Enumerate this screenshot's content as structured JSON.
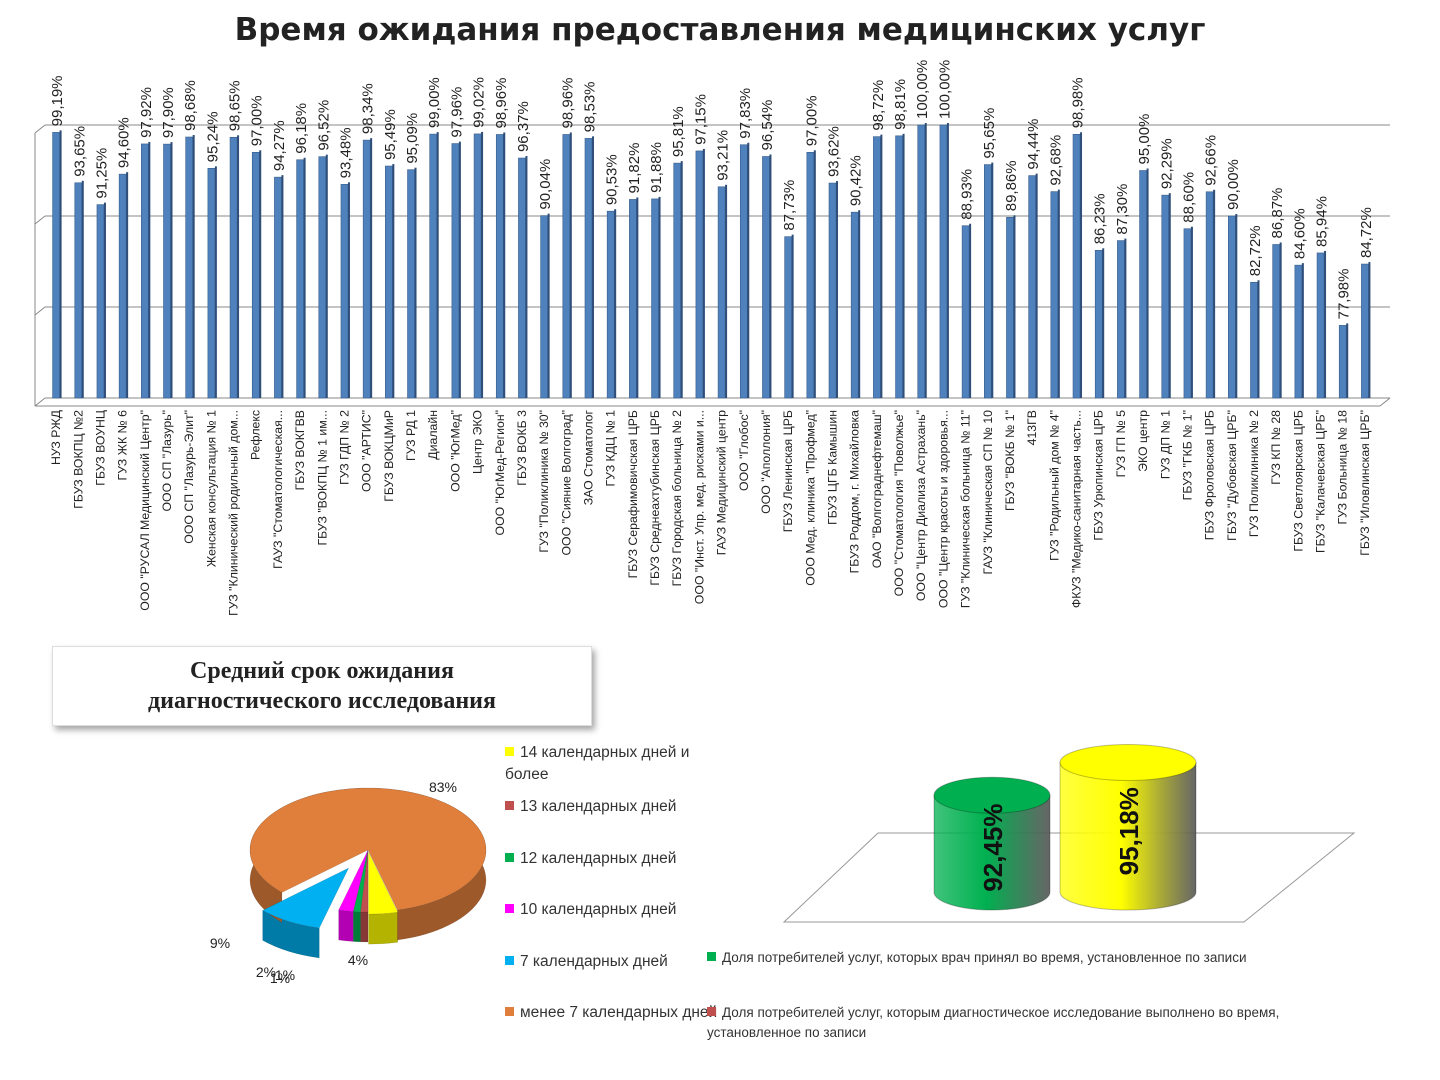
{
  "title": "Время ожидания предоставления медицинских услуг",
  "chart_data": [
    {
      "type": "bar",
      "title": "Время ожидания предоставления медицинских услуг",
      "bar_color": "#4f81bd",
      "grid": true,
      "categories": [
        "НУЗ РЖД",
        "ГБУЗ ВОКПЦ №2",
        "ГБУЗ ВОУНЦ",
        "ГУЗ ЖК № 6",
        "ООО \"РУСАЛ Медицинский Центр\"",
        "ООО СП \"Лазурь\"",
        "ООО СП \"Лазурь-Элит\"",
        "Женская консультация № 1",
        "ГУЗ \"Клинический родильный дом...",
        "Рефлекс",
        "ГАУЗ \"Стоматологическая...",
        "ГБУЗ ВОКГВВ",
        "ГБУЗ \"ВОКПЦ № 1 им...",
        "ГУЗ ГДП № 2",
        "ООО \"АРТИС\"",
        "ГБУЗ ВОКЦМиР",
        "ГУЗ РД 1",
        "Диалайн",
        "ООО \"ЮгМед\"",
        "Центр ЭКО",
        "ООО \"ЮгМед-Регион\"",
        "ГБУЗ ВОКБ 3",
        "ГУЗ \"Поликлиника № 30\"",
        "ООО \"Сияние Волгоград\"",
        "ЗАО Стоматолог",
        "ГУЗ КДЦ № 1",
        "ГБУЗ Серафимовичская ЦРБ",
        "ГБУЗ Среднеахтубинская ЦРБ",
        "ГБУЗ Городская больница № 2",
        "ООО \"Инст. Упр. мед. рисками и...",
        "ГАУЗ Медицинский центр",
        "ООО \"Глобос\"",
        "ООО \"Аполлония\"",
        "ГБУЗ Ленинская ЦРБ",
        "ООО Мед. клиника \"Профмед\"",
        "ГБУЗ ЦГБ Камышин",
        "ГБУЗ Роддом, г. Михайловка",
        "ОАО \"Волгограднефтемаш\"",
        "ООО \"Стоматология \"Поволжье\"",
        "ООО \"Центр Диализа Астрахань\"",
        "ООО \"Центр красоты и здоровья...",
        "ГУЗ \"Клиническая больница № 11\"",
        "ГАУЗ \"Клиническая СП № 10",
        "ГБУЗ \"ВОКБ № 1\"",
        "413ГВ",
        "ГУЗ \"Родильный дом № 4\"",
        "ФКУЗ \"Медико-санитарная часть...",
        "ГБУЗ Урюпинская ЦРБ",
        "ГУЗ ГП № 5",
        "ЭКО центр",
        "ГУЗ ДП № 1",
        "ГБУЗ \"ГКБ № 1\"",
        "ГБУЗ Фроловская ЦРБ",
        "ГБУЗ \"Дубовская ЦРБ\"",
        "ГУЗ Поликлиника № 2",
        "ГУЗ КП № 28",
        "ГБУЗ Светлоярская ЦРБ",
        "ГБУЗ \"Калачевская ЦРБ\"",
        "ГУЗ Больница № 18",
        "ГБУЗ \"Иловлинская ЦРБ\""
      ],
      "values": [
        99.19,
        93.65,
        91.25,
        94.6,
        97.92,
        97.9,
        98.68,
        95.24,
        98.65,
        97.0,
        94.27,
        96.18,
        96.52,
        93.48,
        98.34,
        95.49,
        95.09,
        99.0,
        97.96,
        99.02,
        98.96,
        96.37,
        90.04,
        98.96,
        98.53,
        90.53,
        91.82,
        91.88,
        95.81,
        97.15,
        93.21,
        97.83,
        96.54,
        87.73,
        97.0,
        93.62,
        90.42,
        98.72,
        98.81,
        100.0,
        100.0,
        88.93,
        95.65,
        89.86,
        94.44,
        92.68,
        98.98,
        86.23,
        87.3,
        95.0,
        92.29,
        88.6,
        92.66,
        90.0,
        82.72,
        86.87,
        84.6,
        85.94,
        77.98,
        84.72
      ],
      "labels": [
        "99,19%",
        "93,65%",
        "91,25%",
        "94,60%",
        "97,92%",
        "97,90%",
        "98,68%",
        "95,24%",
        "98,65%",
        "97,00%",
        "94,27%",
        "96,18%",
        "96,52%",
        "93,48%",
        "98,34%",
        "95,49%",
        "95,09%",
        "99,00%",
        "97,96%",
        "99,02%",
        "98,96%",
        "96,37%",
        "90,04%",
        "98,96%",
        "98,53%",
        "90,53%",
        "91,82%",
        "91,88%",
        "95,81%",
        "97,15%",
        "93,21%",
        "97,83%",
        "96,54%",
        "87,73%",
        "97,00%",
        "93,62%",
        "90,42%",
        "98,72%",
        "98,81%",
        "100,00%",
        "100,00%",
        "88,93%",
        "95,65%",
        "89,86%",
        "94,44%",
        "92,68%",
        "98,98%",
        "86,23%",
        "87,30%",
        "95,00%",
        "92,29%",
        "88,60%",
        "92,66%",
        "90,00%",
        "82,72%",
        "86,87%",
        "84,60%",
        "85,94%",
        "77,98%",
        "84,72%"
      ],
      "ylim": [
        70,
        100
      ]
    },
    {
      "type": "pie",
      "title": "Средний срок ожидания диагностического исследования",
      "categories": [
        "14 календарных дней и более",
        "13 календарных дней",
        "12 календарных дней",
        "10 календарных дней",
        "7 календарных дней",
        "менее 7 календарных дней"
      ],
      "values": [
        4,
        1,
        1,
        2,
        9,
        83
      ],
      "labels": [
        "4%",
        "1%",
        "1%",
        "2%",
        "9%",
        "83%"
      ],
      "colors": [
        "#ffff00",
        "#c0504d",
        "#00b050",
        "#ff00ff",
        "#00b0f0",
        "#e07f3c"
      ],
      "legend": "right"
    },
    {
      "type": "bar",
      "style": "3d-cylinder",
      "series": [
        {
          "name": "Доля потребителей услуг, которых врач принял во время, установленное по записи",
          "value": 92.45,
          "label": "92,45%",
          "color": "#00b050"
        },
        {
          "name": "Доля потребителей услуг, которым диагностическое исследование выполнено во время, установленное по записи",
          "value": 95.18,
          "label": "95,18%",
          "color": "#ffff00"
        }
      ],
      "legend_colors": [
        "#00b050",
        "#c0504d"
      ],
      "legend": "bottom"
    }
  ]
}
